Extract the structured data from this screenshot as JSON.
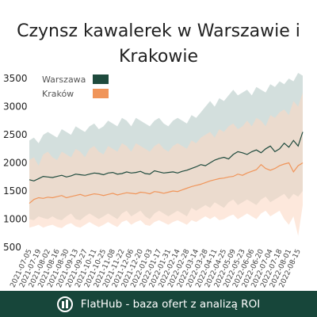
{
  "chart_data": {
    "type": "line",
    "title": "Czynsz kawalerek w Warszawie i Krakowie",
    "xlabel": "",
    "ylabel": "",
    "ylim": [
      500,
      3600
    ],
    "yticks": [
      500,
      1000,
      1500,
      2000,
      2500,
      3000,
      3500
    ],
    "legend_position": "top-left",
    "grid": false,
    "x": [
      "2021-07-05",
      "2021-07-12",
      "2021-07-19",
      "2021-07-26",
      "2021-08-02",
      "2021-08-09",
      "2021-08-16",
      "2021-08-23",
      "2021-08-30",
      "2021-09-06",
      "2021-09-13",
      "2021-09-20",
      "2021-09-27",
      "2021-10-04",
      "2021-10-11",
      "2021-10-18",
      "2021-10-25",
      "2021-11-01",
      "2021-11-08",
      "2021-11-15",
      "2021-11-22",
      "2021-11-29",
      "2021-12-06",
      "2021-12-13",
      "2021-12-20",
      "2021-12-27",
      "2022-01-03",
      "2022-01-10",
      "2022-01-17",
      "2022-01-24",
      "2022-01-31",
      "2022-02-07",
      "2022-02-14",
      "2022-02-21",
      "2022-02-28",
      "2022-03-07",
      "2022-03-14",
      "2022-03-21",
      "2022-03-28",
      "2022-04-04",
      "2022-04-11",
      "2022-04-18",
      "2022-04-25",
      "2022-05-02",
      "2022-05-09",
      "2022-05-16",
      "2022-05-23",
      "2022-05-30",
      "2022-06-06",
      "2022-06-13",
      "2022-06-20",
      "2022-06-27",
      "2022-07-04",
      "2022-07-11",
      "2022-07-18",
      "2022-07-25",
      "2022-08-01",
      "2022-08-08",
      "2022-08-15",
      "2022-08-22"
    ],
    "x_tick_labels": [
      "2021-07-05",
      "2021-07-19",
      "2021-08-02",
      "2021-08-16",
      "2021-08-30",
      "2021-09-13",
      "2021-09-27",
      "2021-10-11",
      "2021-10-25",
      "2021-11-08",
      "2021-11-22",
      "2021-12-06",
      "2021-12-20",
      "2022-01-03",
      "2022-01-17",
      "2022-01-31",
      "2022-02-14",
      "2022-02-28",
      "2022-03-14",
      "2022-03-28",
      "2022-04-11",
      "2022-04-25",
      "2022-05-09",
      "2022-05-23",
      "2022-06-06",
      "2022-06-20",
      "2022-07-04",
      "2022-07-18",
      "2022-08-01",
      "2022-08-15"
    ],
    "series": [
      {
        "name": "Warszawa",
        "color": "#1e4a3d",
        "band_color": "#b5c9c6",
        "values": [
          1700,
          1680,
          1720,
          1760,
          1750,
          1740,
          1760,
          1780,
          1750,
          1770,
          1800,
          1790,
          1780,
          1800,
          1820,
          1810,
          1790,
          1820,
          1830,
          1800,
          1810,
          1840,
          1820,
          1830,
          1850,
          1810,
          1800,
          1860,
          1840,
          1820,
          1830,
          1840,
          1820,
          1850,
          1870,
          1900,
          1930,
          1970,
          1950,
          2000,
          2050,
          2080,
          2100,
          2070,
          2150,
          2200,
          2180,
          2150,
          2200,
          2230,
          2180,
          2250,
          2300,
          2200,
          2250,
          2350,
          2280,
          2400,
          2300,
          2550
        ],
        "band_upper": [
          2400,
          2450,
          2350,
          2500,
          2550,
          2500,
          2450,
          2600,
          2550,
          2500,
          2650,
          2600,
          2550,
          2650,
          2700,
          2600,
          2650,
          2750,
          2700,
          2650,
          2800,
          2750,
          2650,
          2800,
          2750,
          2700,
          2650,
          2750,
          2800,
          2700,
          2650,
          2750,
          2800,
          2750,
          2700,
          2850,
          2800,
          2900,
          3000,
          3100,
          3000,
          3150,
          3100,
          3200,
          3300,
          3200,
          3250,
          3300,
          3200,
          3350,
          3300,
          3250,
          3400,
          3350,
          3450,
          3400,
          3500,
          3450,
          3600,
          3550
        ],
        "band_lower": [
          1000,
          980,
          1050,
          1020,
          1000,
          1050,
          1000,
          980,
          1050,
          1100,
          1000,
          980,
          1050,
          1100,
          1050,
          1000,
          1050,
          1100,
          1050,
          1000,
          1100,
          1150,
          1050,
          1100,
          1150,
          1050,
          1000,
          1100,
          1150,
          1100,
          1050,
          1100,
          1150,
          1100,
          1050,
          1200,
          1150,
          1200,
          1250,
          1200,
          1300,
          1250,
          1200,
          1300,
          1350,
          1250,
          1300,
          1350,
          1300,
          1250,
          1350,
          1400,
          1300,
          1350,
          1400,
          1450,
          1350,
          1450,
          1400,
          1500
        ]
      },
      {
        "name": "Kraków",
        "color": "#f0955a",
        "band_color": "#fbd9c4",
        "values": [
          1280,
          1350,
          1380,
          1370,
          1390,
          1380,
          1400,
          1420,
          1380,
          1400,
          1420,
          1440,
          1410,
          1430,
          1450,
          1440,
          1420,
          1440,
          1460,
          1430,
          1450,
          1470,
          1460,
          1450,
          1480,
          1470,
          1450,
          1490,
          1480,
          1460,
          1480,
          1500,
          1490,
          1520,
          1550,
          1580,
          1600,
          1620,
          1650,
          1680,
          1700,
          1720,
          1730,
          1750,
          1760,
          1800,
          1780,
          1820,
          1850,
          1880,
          1970,
          1900,
          1870,
          1900,
          1950,
          1980,
          2000,
          1840,
          1950,
          2000
        ],
        "band_upper": [
          2050,
          2100,
          1950,
          2150,
          2200,
          2100,
          2050,
          2200,
          2150,
          2100,
          2250,
          2200,
          2100,
          2250,
          2300,
          2200,
          2150,
          2300,
          2250,
          2200,
          2350,
          2300,
          2200,
          2350,
          2300,
          2250,
          2200,
          2300,
          2350,
          2250,
          2200,
          2300,
          2350,
          2300,
          2250,
          2400,
          2350,
          2450,
          2500,
          2550,
          2450,
          2600,
          2550,
          2650,
          2700,
          2600,
          2650,
          2750,
          2650,
          2800,
          2750,
          2650,
          2850,
          2800,
          2900,
          2950,
          2850,
          3100,
          3000,
          3250
        ],
        "band_lower": [
          850,
          870,
          900,
          850,
          880,
          900,
          860,
          840,
          900,
          930,
          870,
          850,
          900,
          950,
          900,
          860,
          900,
          950,
          900,
          860,
          950,
          980,
          900,
          950,
          980,
          900,
          880,
          950,
          980,
          940,
          900,
          950,
          980,
          940,
          900,
          980,
          950,
          1000,
          1050,
          1000,
          1050,
          980,
          1000,
          1050,
          1080,
          1000,
          1050,
          1100,
          1050,
          1000,
          1100,
          1150,
          1050,
          1100,
          1150,
          1000,
          900,
          1050,
          700,
          1250
        ]
      }
    ]
  },
  "footer": {
    "text": "FlatHub - baza ofert z analizą ROI",
    "background_color": "#17463a",
    "icon": "flathub-logo-icon"
  }
}
